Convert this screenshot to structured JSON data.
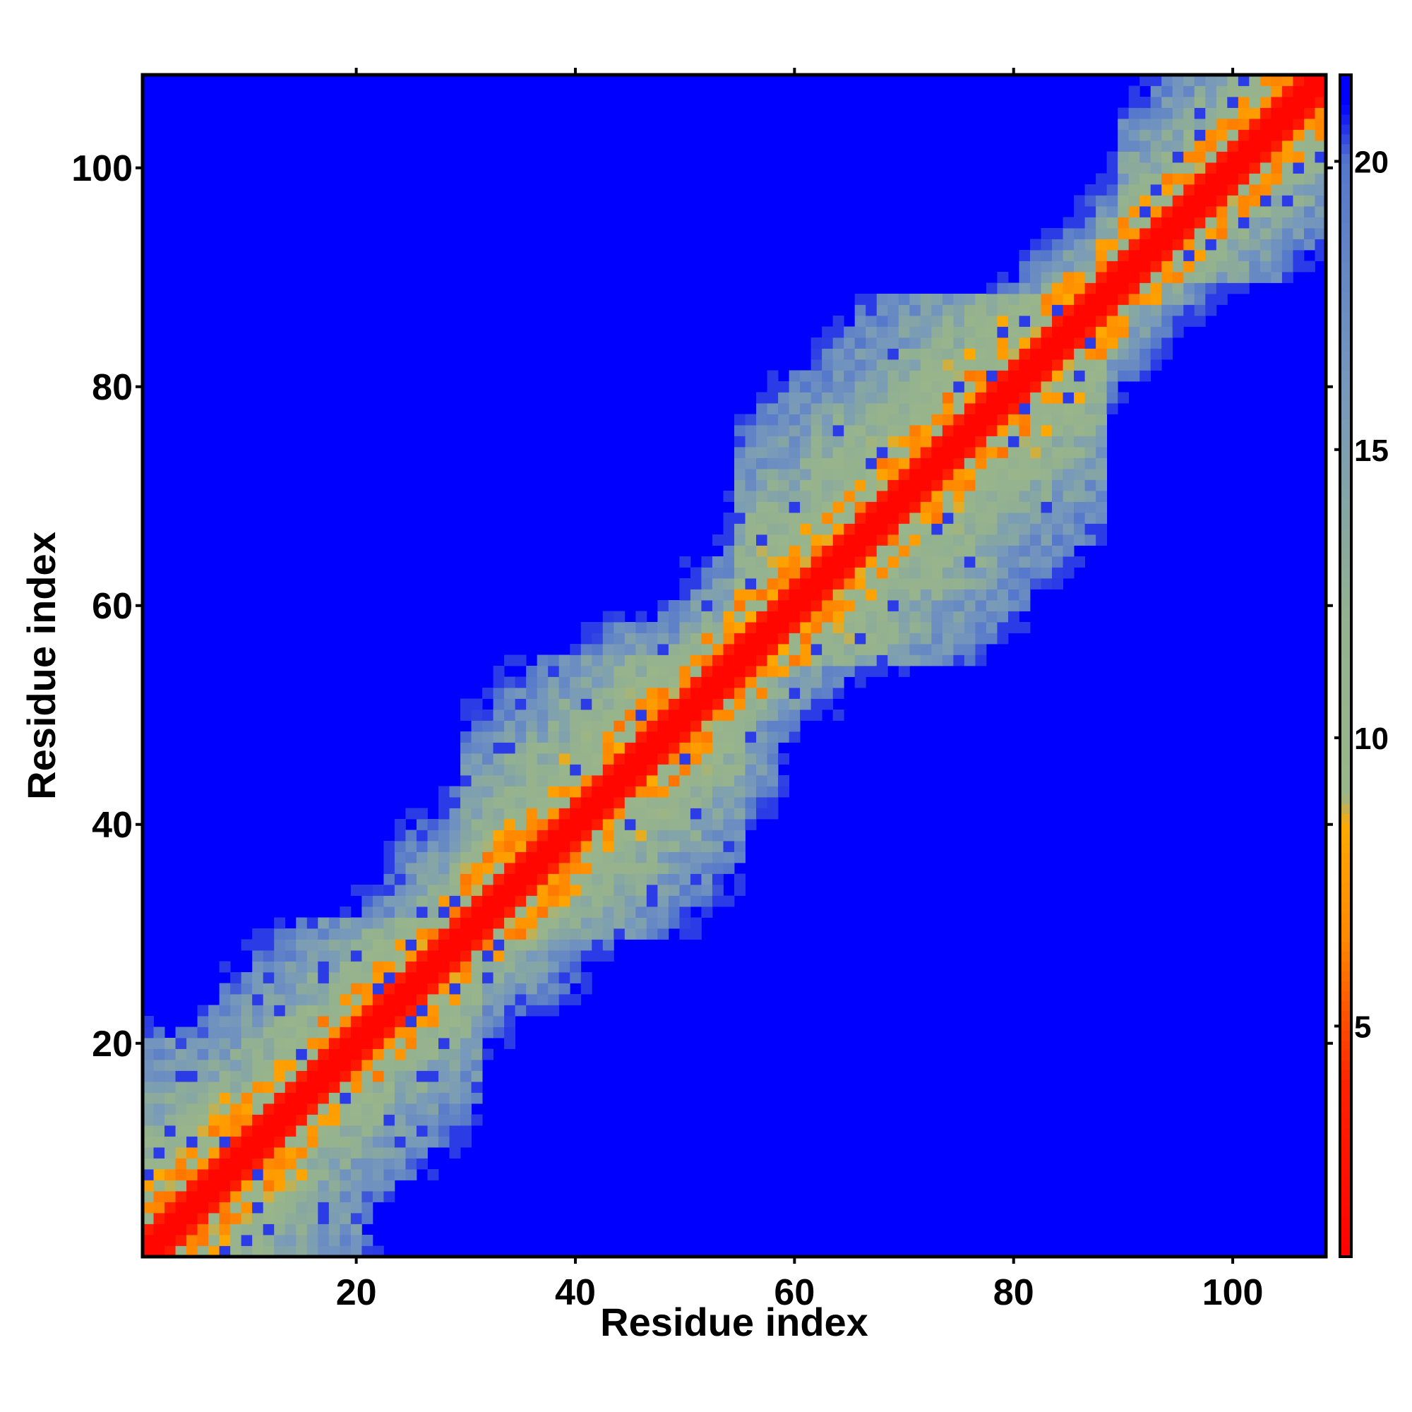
{
  "chart_data": {
    "type": "heatmap",
    "title": "",
    "xlabel": "Residue index",
    "ylabel": "Residue index",
    "xlim": [
      1,
      108
    ],
    "ylim": [
      1,
      108
    ],
    "xticks": [
      20,
      40,
      60,
      80,
      100
    ],
    "yticks": [
      20,
      40,
      60,
      80,
      100
    ],
    "colorbar": {
      "range": [
        1,
        21.5
      ],
      "ticks": [
        5,
        10,
        15,
        20
      ],
      "stops": [
        {
          "value": 1,
          "color": "#ff0000"
        },
        {
          "value": 4,
          "color": "#ff2200"
        },
        {
          "value": 6.5,
          "color": "#ff8800"
        },
        {
          "value": 8.5,
          "color": "#ffaa00"
        },
        {
          "value": 9,
          "color": "#99b58a"
        },
        {
          "value": 12,
          "color": "#94b28f"
        },
        {
          "value": 16,
          "color": "#7799bb"
        },
        {
          "value": 20,
          "color": "#5577cc"
        },
        {
          "value": 21,
          "color": "#0000ff"
        }
      ],
      "background_color": "#0000ff"
    },
    "cell_value_description": "Distance map: values near 1 on diagonal, increasing away from diagonal; blue where distance exceeds cutoff"
  }
}
